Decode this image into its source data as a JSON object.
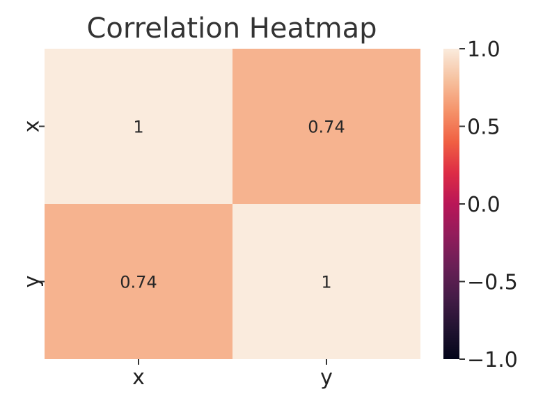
{
  "chart_data": {
    "type": "heatmap",
    "title": "Correlation Heatmap",
    "xlabel": "",
    "ylabel": "",
    "x_categories": [
      "x",
      "y"
    ],
    "y_categories": [
      "x",
      "y"
    ],
    "values": [
      [
        1,
        0.74
      ],
      [
        0.74,
        1
      ]
    ],
    "annotations": [
      [
        "1",
        "0.74"
      ],
      [
        "0.74",
        "1"
      ]
    ],
    "colorbar": {
      "vmin": -1.0,
      "vmax": 1.0,
      "ticks": [
        1.0,
        0.5,
        0.0,
        -0.5,
        -1.0
      ],
      "tick_labels": [
        "1.0",
        "0.5",
        "0.0",
        "−0.5",
        "−1.0"
      ],
      "colormap": "rocket"
    },
    "grid": false
  }
}
